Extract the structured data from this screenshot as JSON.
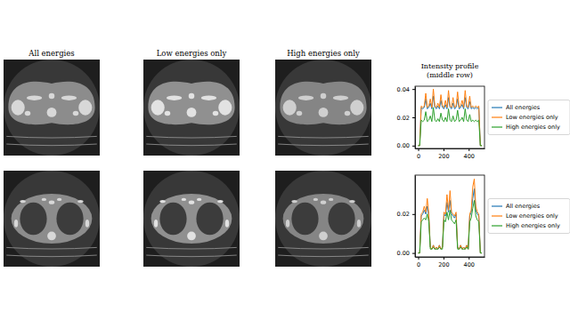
{
  "chart_data": [
    {
      "type": "image",
      "title": "All energies"
    },
    {
      "type": "image",
      "title": "Low energies only"
    },
    {
      "type": "image",
      "title": "High energies only"
    },
    {
      "type": "line",
      "title": "Intensity profile\n(middle row)",
      "legend": "right",
      "x": [
        0,
        12,
        24,
        36,
        48,
        60,
        72,
        84,
        96,
        108,
        120,
        132,
        144,
        156,
        168,
        180,
        192,
        204,
        216,
        228,
        240,
        252,
        264,
        276,
        288,
        300,
        312,
        324,
        336,
        348,
        360,
        372,
        384,
        396,
        408,
        420,
        432,
        444,
        456,
        468,
        480,
        492,
        504
      ],
      "xlim": [
        -25,
        525
      ],
      "xticks": [
        0,
        200,
        400
      ],
      "ylim": [
        -0.002,
        0.042
      ],
      "yticks": [
        {
          "value": 0,
          "label": "0.00"
        },
        {
          "value": 0.02,
          "label": "0.02"
        },
        {
          "value": 0.04,
          "label": "0.04"
        }
      ],
      "series": [
        {
          "name": "All energies",
          "color": "#1f77b4",
          "values": [
            0,
            0,
            0.027,
            0.026,
            0.027,
            0.033,
            0.026,
            0.027,
            0.03,
            0.026,
            0.035,
            0.027,
            0.026,
            0.028,
            0.026,
            0.032,
            0.027,
            0.026,
            0.029,
            0.026,
            0.034,
            0.027,
            0.026,
            0.03,
            0.026,
            0.027,
            0.033,
            0.026,
            0.027,
            0.029,
            0.026,
            0.034,
            0.027,
            0.026,
            0.031,
            0.026,
            0.027,
            0.026,
            0.027,
            0.026,
            0.027,
            0,
            0
          ]
        },
        {
          "name": "Low energies only",
          "color": "#ff7f0e",
          "values": [
            0,
            0,
            0.028,
            0.027,
            0.028,
            0.037,
            0.027,
            0.028,
            0.033,
            0.027,
            0.04,
            0.028,
            0.027,
            0.03,
            0.027,
            0.036,
            0.028,
            0.027,
            0.032,
            0.027,
            0.039,
            0.028,
            0.027,
            0.034,
            0.027,
            0.028,
            0.038,
            0.027,
            0.028,
            0.032,
            0.027,
            0.039,
            0.028,
            0.027,
            0.035,
            0.027,
            0.028,
            0.027,
            0.028,
            0.027,
            0.028,
            0,
            0
          ]
        },
        {
          "name": "High energies only",
          "color": "#2ca02c",
          "values": [
            0,
            0,
            0.018,
            0.017,
            0.018,
            0.024,
            0.017,
            0.018,
            0.021,
            0.017,
            0.027,
            0.018,
            0.017,
            0.019,
            0.017,
            0.023,
            0.018,
            0.017,
            0.02,
            0.017,
            0.026,
            0.018,
            0.017,
            0.021,
            0.017,
            0.018,
            0.025,
            0.017,
            0.018,
            0.02,
            0.017,
            0.026,
            0.018,
            0.017,
            0.022,
            0.017,
            0.018,
            0.017,
            0.018,
            0.017,
            0.018,
            0,
            0
          ]
        }
      ]
    },
    {
      "type": "image"
    },
    {
      "type": "image"
    },
    {
      "type": "image"
    },
    {
      "type": "line",
      "legend": "right",
      "x": [
        0,
        12,
        24,
        36,
        48,
        60,
        72,
        84,
        96,
        108,
        120,
        132,
        144,
        156,
        168,
        180,
        192,
        204,
        216,
        228,
        240,
        252,
        264,
        276,
        288,
        300,
        312,
        324,
        336,
        348,
        360,
        372,
        384,
        396,
        408,
        420,
        432,
        444,
        456,
        468,
        480,
        492,
        504
      ],
      "xlim": [
        -25,
        525
      ],
      "xticks": [
        0,
        200,
        400
      ],
      "ylim": [
        -0.002,
        0.04
      ],
      "yticks": [
        {
          "value": 0,
          "label": "0.00"
        },
        {
          "value": 0.02,
          "label": "0.02"
        }
      ],
      "series": [
        {
          "name": "All energies",
          "color": "#1f77b4",
          "values": [
            0,
            0,
            0.019,
            0.02,
            0.022,
            0.02,
            0.024,
            0.019,
            0.003,
            0.002,
            0.004,
            0.002,
            0.003,
            0.002,
            0.004,
            0.002,
            0.003,
            0.02,
            0.019,
            0.026,
            0.021,
            0.027,
            0.02,
            0.019,
            0.018,
            0.02,
            0.003,
            0.002,
            0.004,
            0.002,
            0.003,
            0.002,
            0.004,
            0.002,
            0.019,
            0.021,
            0.028,
            0.033,
            0.022,
            0.02,
            0.019,
            0,
            0
          ]
        },
        {
          "name": "Low energies only",
          "color": "#ff7f0e",
          "values": [
            0,
            0,
            0.02,
            0.021,
            0.024,
            0.021,
            0.028,
            0.02,
            0.003,
            0.002,
            0.004,
            0.002,
            0.003,
            0.002,
            0.004,
            0.002,
            0.003,
            0.021,
            0.02,
            0.03,
            0.022,
            0.032,
            0.021,
            0.02,
            0.019,
            0.021,
            0.003,
            0.002,
            0.004,
            0.002,
            0.003,
            0.002,
            0.004,
            0.002,
            0.02,
            0.022,
            0.034,
            0.038,
            0.024,
            0.021,
            0.02,
            0,
            0
          ]
        },
        {
          "name": "High energies only",
          "color": "#2ca02c",
          "values": [
            0,
            0,
            0.016,
            0.017,
            0.018,
            0.017,
            0.02,
            0.016,
            0.002,
            0.002,
            0.003,
            0.002,
            0.002,
            0.002,
            0.003,
            0.002,
            0.002,
            0.017,
            0.016,
            0.021,
            0.017,
            0.022,
            0.017,
            0.016,
            0.015,
            0.017,
            0.002,
            0.002,
            0.003,
            0.002,
            0.002,
            0.002,
            0.003,
            0.002,
            0.016,
            0.018,
            0.023,
            0.027,
            0.019,
            0.017,
            0.016,
            0,
            0
          ]
        }
      ]
    }
  ]
}
